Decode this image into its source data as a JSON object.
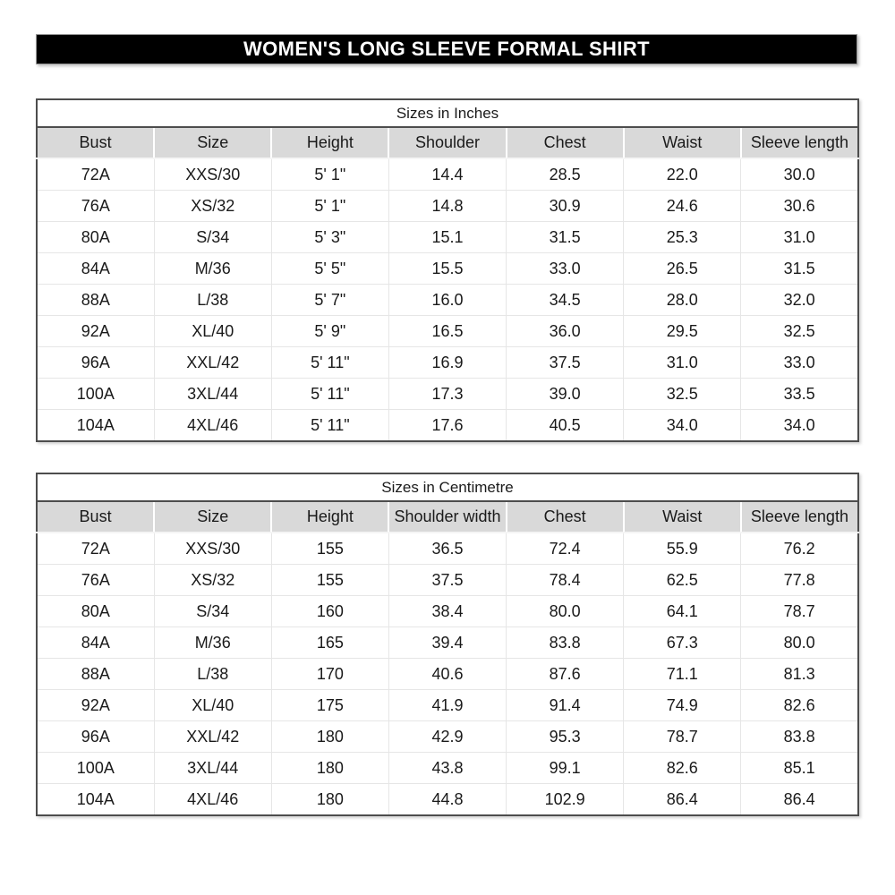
{
  "title_bar": {
    "text": "WOMEN'S LONG SLEEVE FORMAL SHIRT",
    "background": "#000000",
    "text_color": "#ffffff"
  },
  "colors": {
    "header_row_bg": "#d9d9d9",
    "table_border": "#4d4d4d",
    "grid_line": "#e6e6e6",
    "text": "#1a1a1a",
    "page_bg": "#ffffff"
  },
  "tables": [
    {
      "caption": "Sizes in Inches",
      "columns": [
        "Bust",
        "Size",
        "Height",
        "Shoulder",
        "Chest",
        "Waist",
        "Sleeve length"
      ],
      "rows": [
        [
          "72A",
          "XXS/30",
          "5' 1\"",
          "14.4",
          "28.5",
          "22.0",
          "30.0"
        ],
        [
          "76A",
          "XS/32",
          "5' 1\"",
          "14.8",
          "30.9",
          "24.6",
          "30.6"
        ],
        [
          "80A",
          "S/34",
          "5' 3\"",
          "15.1",
          "31.5",
          "25.3",
          "31.0"
        ],
        [
          "84A",
          "M/36",
          "5' 5\"",
          "15.5",
          "33.0",
          "26.5",
          "31.5"
        ],
        [
          "88A",
          "L/38",
          "5' 7\"",
          "16.0",
          "34.5",
          "28.0",
          "32.0"
        ],
        [
          "92A",
          "XL/40",
          "5' 9\"",
          "16.5",
          "36.0",
          "29.5",
          "32.5"
        ],
        [
          "96A",
          "XXL/42",
          "5' 11\"",
          "16.9",
          "37.5",
          "31.0",
          "33.0"
        ],
        [
          "100A",
          "3XL/44",
          "5' 11\"",
          "17.3",
          "39.0",
          "32.5",
          "33.5"
        ],
        [
          "104A",
          "4XL/46",
          "5' 11\"",
          "17.6",
          "40.5",
          "34.0",
          "34.0"
        ]
      ]
    },
    {
      "caption": "Sizes in Centimetre",
      "columns": [
        "Bust",
        "Size",
        "Height",
        "Shoulder width",
        "Chest",
        "Waist",
        "Sleeve length"
      ],
      "rows": [
        [
          "72A",
          "XXS/30",
          "155",
          "36.5",
          "72.4",
          "55.9",
          "76.2"
        ],
        [
          "76A",
          "XS/32",
          "155",
          "37.5",
          "78.4",
          "62.5",
          "77.8"
        ],
        [
          "80A",
          "S/34",
          "160",
          "38.4",
          "80.0",
          "64.1",
          "78.7"
        ],
        [
          "84A",
          "M/36",
          "165",
          "39.4",
          "83.8",
          "67.3",
          "80.0"
        ],
        [
          "88A",
          "L/38",
          "170",
          "40.6",
          "87.6",
          "71.1",
          "81.3"
        ],
        [
          "92A",
          "XL/40",
          "175",
          "41.9",
          "91.4",
          "74.9",
          "82.6"
        ],
        [
          "96A",
          "XXL/42",
          "180",
          "42.9",
          "95.3",
          "78.7",
          "83.8"
        ],
        [
          "100A",
          "3XL/44",
          "180",
          "43.8",
          "99.1",
          "82.6",
          "85.1"
        ],
        [
          "104A",
          "4XL/46",
          "180",
          "44.8",
          "102.9",
          "86.4",
          "86.4"
        ]
      ]
    }
  ]
}
